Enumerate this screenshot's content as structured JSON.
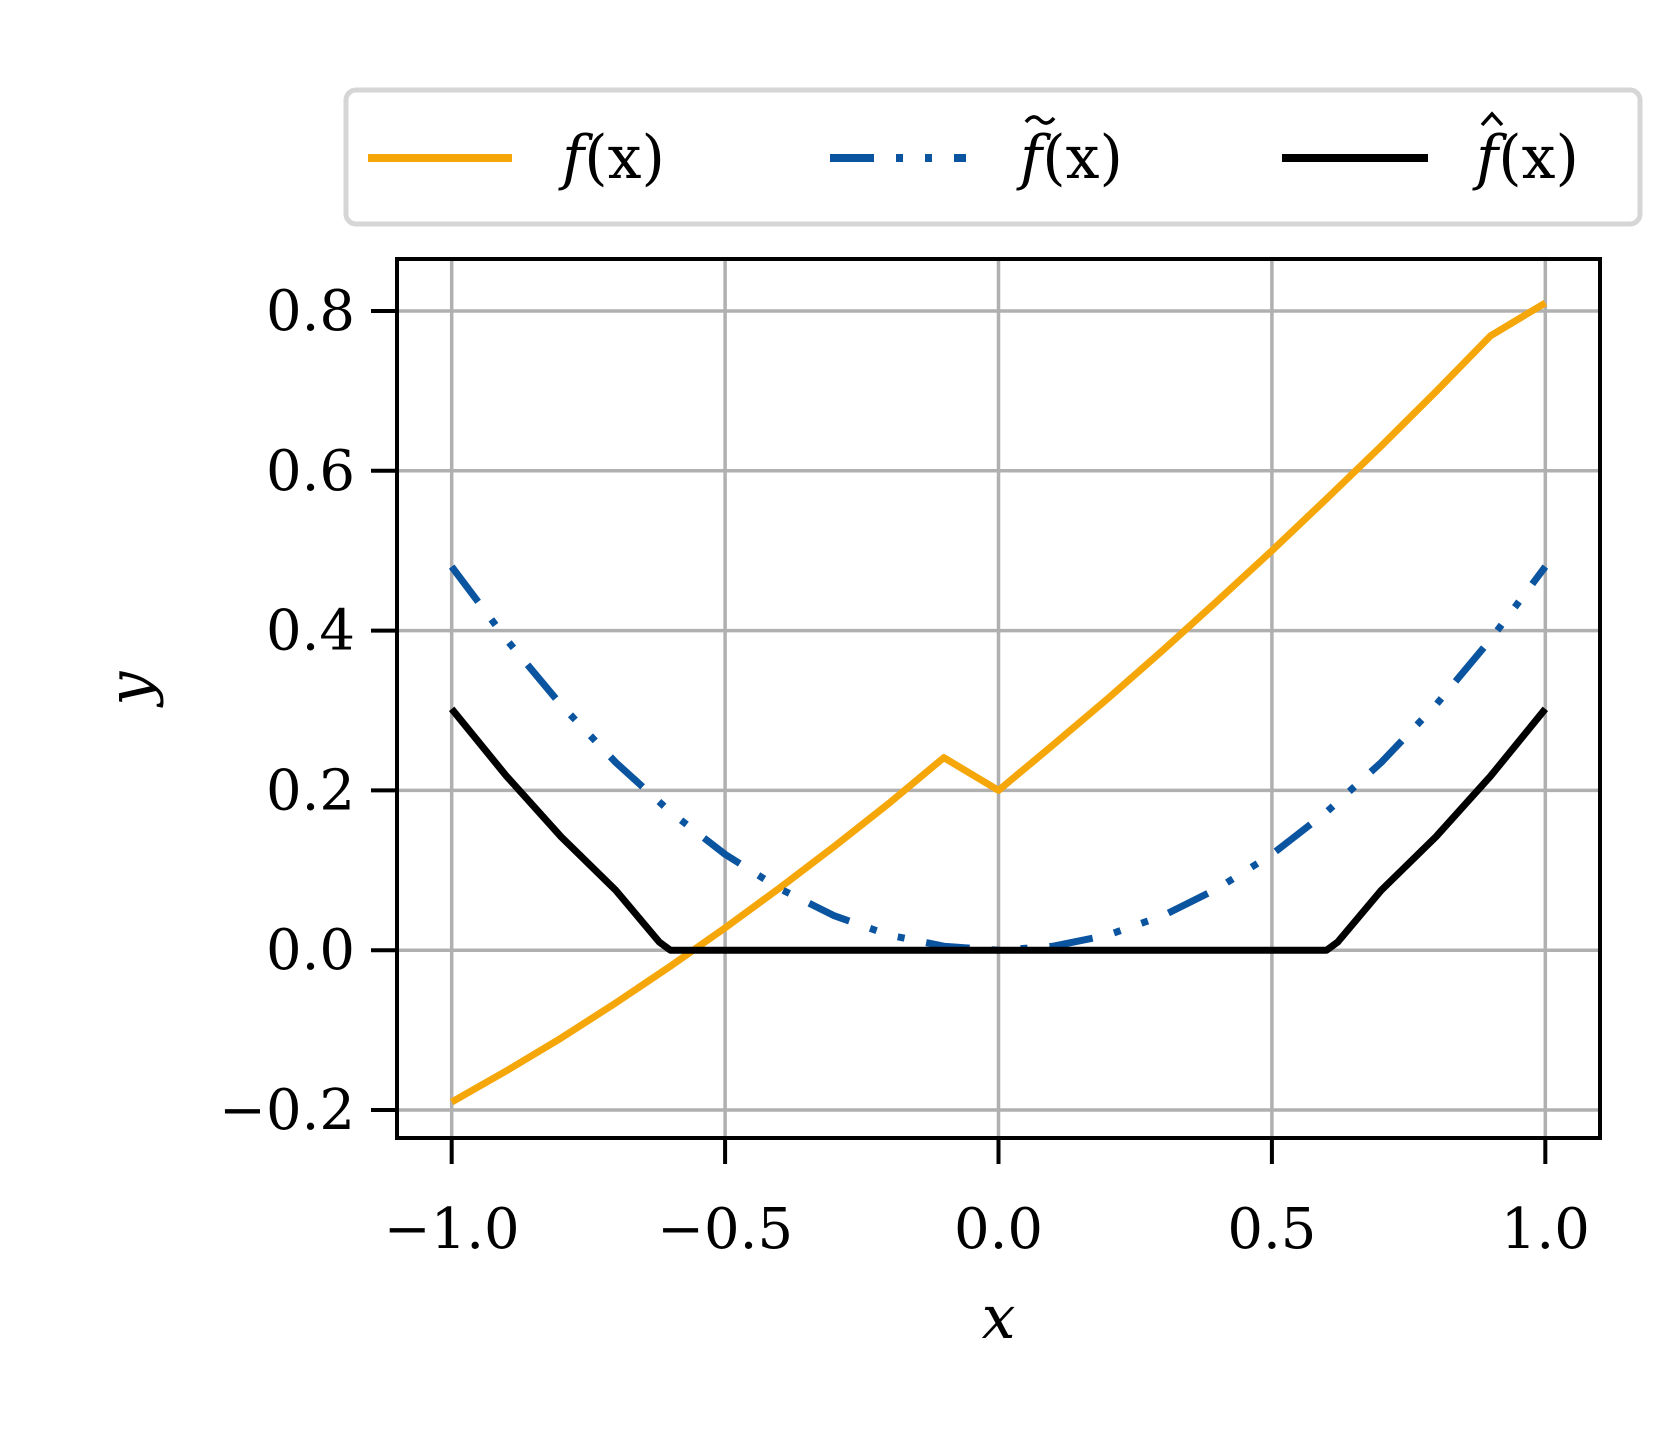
{
  "chart_data": {
    "type": "line",
    "xlabel": "x",
    "ylabel": "y",
    "xlim": [
      -1.1,
      1.1
    ],
    "ylim": [
      -0.235,
      0.865
    ],
    "grid": true,
    "legend_position": "top (above plot, 3 columns)",
    "xticks": [
      -1.0,
      -0.5,
      0.0,
      0.5,
      1.0
    ],
    "xtick_labels": [
      "−1.0",
      "−0.5",
      "0.0",
      "0.5",
      "1.0"
    ],
    "yticks": [
      -0.2,
      0.0,
      0.2,
      0.4,
      0.6,
      0.8
    ],
    "ytick_labels": [
      "−0.2",
      "0.0",
      "0.2",
      "0.4",
      "0.6",
      "0.8"
    ],
    "series": [
      {
        "name": "f(x)",
        "name_prefix": "f",
        "name_accent": "",
        "name_suffix": "(x)",
        "color": "#f5a70a",
        "style": "solid",
        "x": [
          -1.0,
          -0.9,
          -0.8,
          -0.7,
          -0.6,
          -0.5,
          -0.4,
          -0.3,
          -0.2,
          -0.1,
          0.0,
          0.1,
          0.2,
          0.3,
          0.4,
          0.5,
          0.6,
          0.7,
          0.8,
          0.9,
          1.0
        ],
        "y": [
          -0.19,
          -0.151,
          -0.11,
          -0.066,
          -0.02,
          0.028,
          0.078,
          0.13,
          0.184,
          0.241,
          0.2,
          0.257,
          0.315,
          0.375,
          0.437,
          0.5,
          0.565,
          0.631,
          0.699,
          0.769,
          0.81
        ]
      },
      {
        "name": "f~(x)",
        "name_prefix": "f",
        "name_accent": "~",
        "name_suffix": "(x)",
        "color": "#0b54a0",
        "style": "dashdotdot",
        "x": [
          -1.0,
          -0.9,
          -0.8,
          -0.7,
          -0.6,
          -0.5,
          -0.4,
          -0.3,
          -0.2,
          -0.1,
          0.0,
          0.1,
          0.2,
          0.3,
          0.4,
          0.5,
          0.6,
          0.7,
          0.8,
          0.9,
          1.0
        ],
        "y": [
          0.48,
          0.389,
          0.307,
          0.235,
          0.173,
          0.12,
          0.077,
          0.043,
          0.019,
          0.005,
          0.0,
          0.005,
          0.019,
          0.043,
          0.077,
          0.12,
          0.173,
          0.235,
          0.307,
          0.389,
          0.48
        ]
      },
      {
        "name": "f^(x)",
        "name_prefix": "f",
        "name_accent": "^",
        "name_suffix": "(x)",
        "color": "#000000",
        "style": "solid",
        "x": [
          -1.0,
          -0.9,
          -0.8,
          -0.7,
          -0.62,
          -0.6,
          0.6,
          0.62,
          0.7,
          0.8,
          0.9,
          1.0
        ],
        "y": [
          0.302,
          0.218,
          0.142,
          0.075,
          0.01,
          0.0,
          0.0,
          0.01,
          0.075,
          0.142,
          0.218,
          0.302
        ]
      }
    ]
  }
}
